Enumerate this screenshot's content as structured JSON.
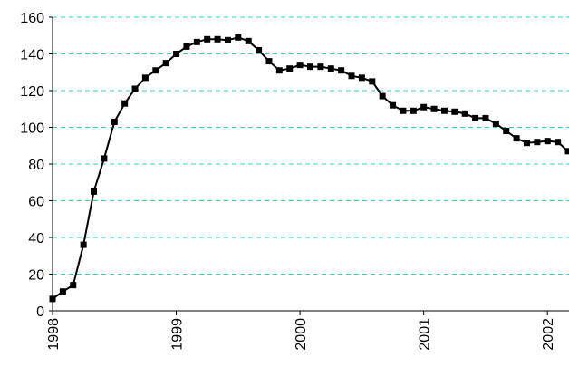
{
  "chart_data": {
    "type": "line",
    "categories": [
      "1998",
      null,
      null,
      null,
      null,
      null,
      null,
      null,
      null,
      null,
      null,
      null,
      "1999",
      null,
      null,
      null,
      null,
      null,
      null,
      null,
      null,
      null,
      null,
      null,
      "2000",
      null,
      null,
      null,
      null,
      null,
      null,
      null,
      null,
      null,
      null,
      null,
      "2001",
      null,
      null,
      null,
      null,
      null,
      null,
      null,
      null,
      null,
      null,
      null,
      "2002",
      null,
      null
    ],
    "series": [
      {
        "color": "#000000",
        "values": [
          6.5,
          10.5,
          14,
          36,
          65,
          83,
          103,
          113,
          121,
          127,
          131,
          135,
          140,
          144,
          146.5,
          148,
          148,
          147.5,
          149,
          147,
          142,
          136,
          131,
          132,
          134,
          133,
          133,
          132,
          131,
          128,
          127,
          125,
          117,
          112,
          109,
          109,
          111,
          110,
          109,
          108.5,
          107.5,
          105,
          105,
          102,
          98,
          94,
          91.5,
          92,
          92.5,
          92,
          87
        ]
      }
    ],
    "ylim": [
      0,
      160
    ],
    "yticks": [
      0,
      20,
      40,
      60,
      80,
      100,
      120,
      140,
      160
    ],
    "grid": true,
    "grid_color": "#33cccc"
  }
}
